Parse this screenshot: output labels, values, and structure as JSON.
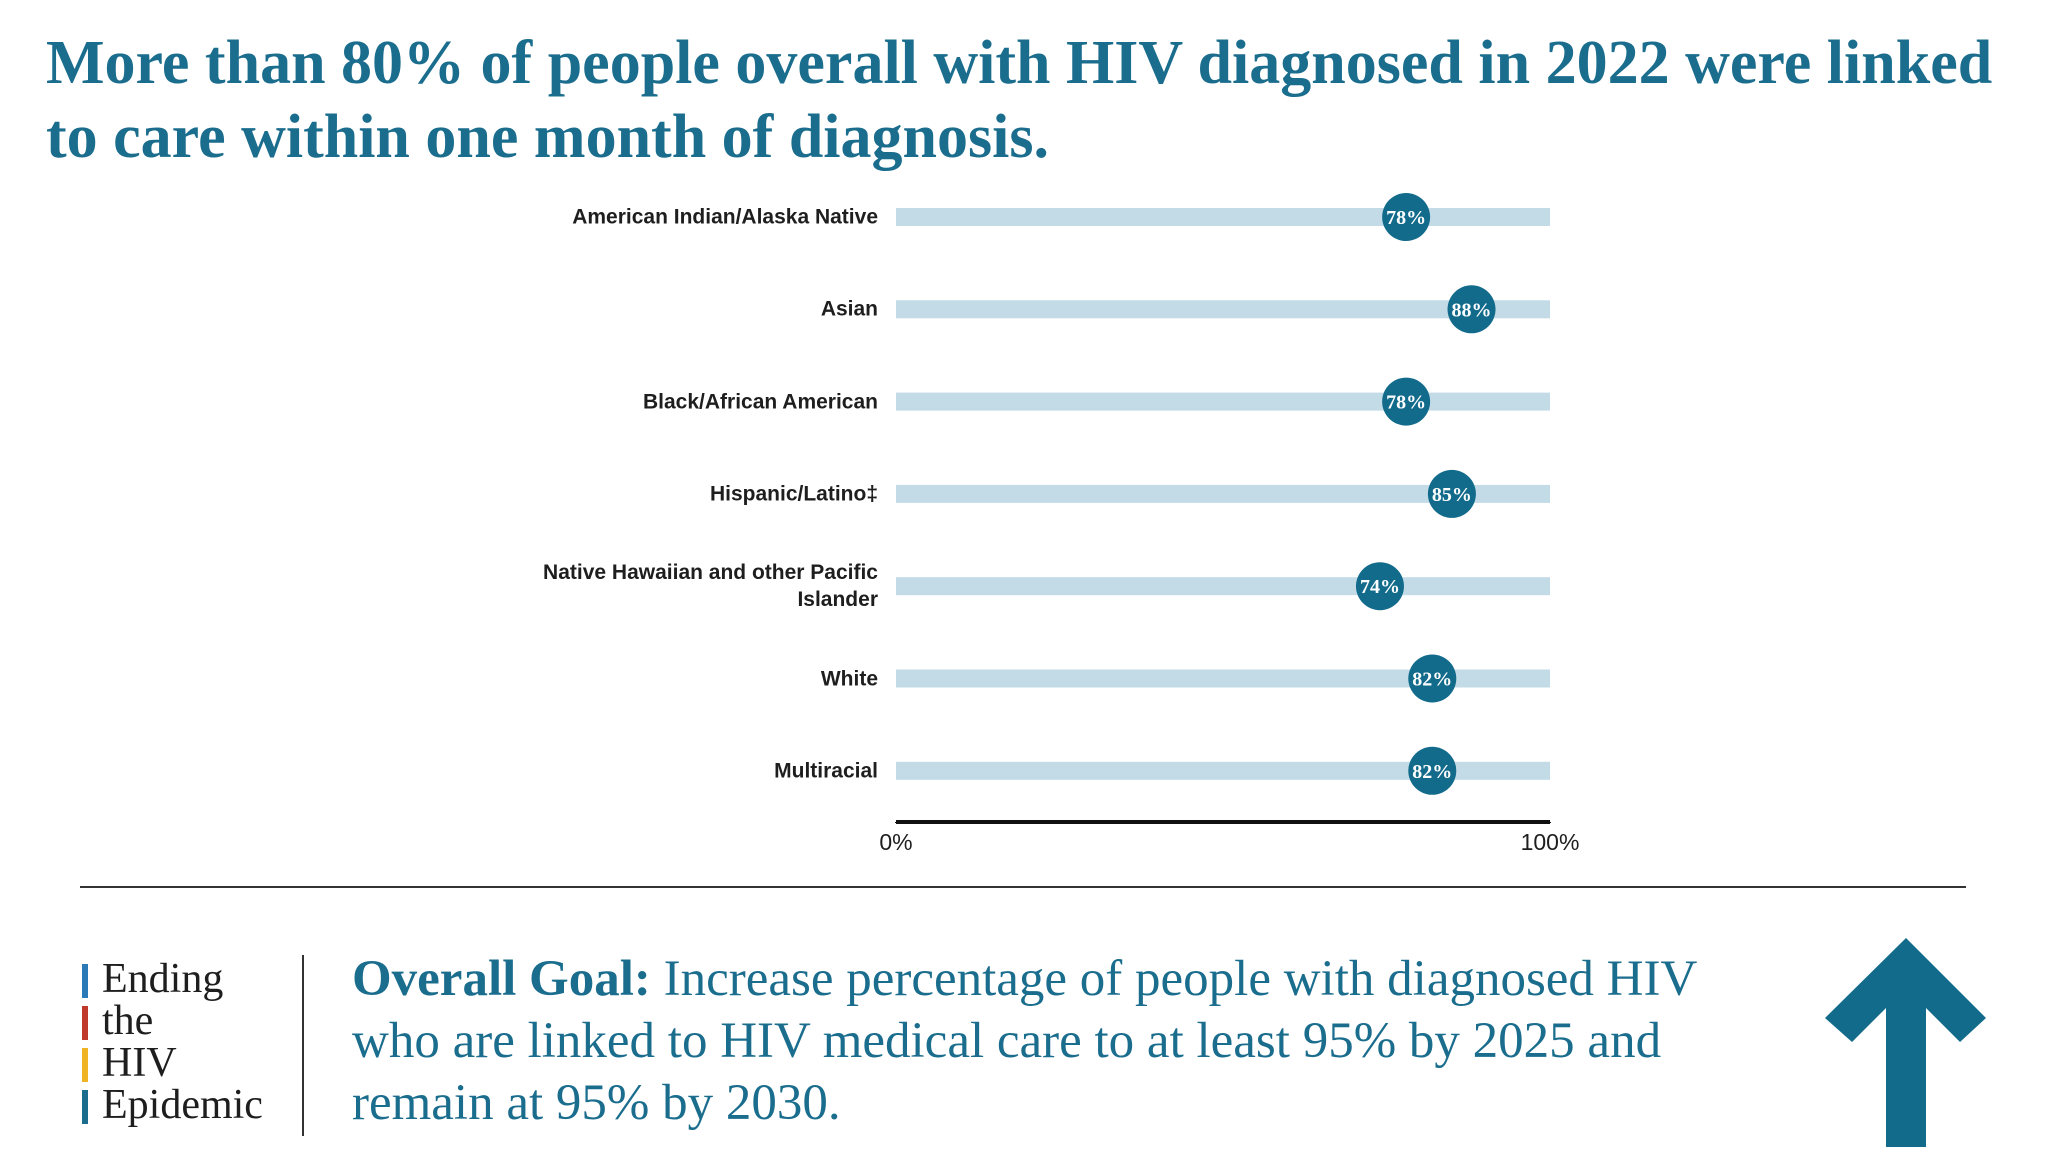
{
  "chart_data": {
    "type": "dot",
    "title": "More than 80% of people overall with HIV diagnosed in 2022 were linked to care within one month of diagnosis.",
    "categories": [
      "American Indian/Alaska Native",
      "Asian",
      "Black/African American",
      "Hispanic/Latino‡",
      "Native Hawaiian and other Pacific Islander",
      "White",
      "Multiracial"
    ],
    "values": [
      78,
      88,
      78,
      85,
      74,
      82,
      82
    ],
    "value_labels": [
      "78%",
      "88%",
      "78%",
      "85%",
      "74%",
      "82%",
      "82%"
    ],
    "color": "#136b8c",
    "track_color": "#c2dbe6",
    "xlim": [
      0,
      100
    ],
    "xticks": [
      {
        "value": 0,
        "label": "0%"
      },
      {
        "value": 100,
        "label": "100%"
      }
    ]
  },
  "logo": {
    "lines": [
      "Ending",
      "the",
      "HIV",
      "Epidemic"
    ]
  },
  "goal": {
    "label": "Overall Goal:",
    "text": "Increase percentage of people with diagnosed HIV who are linked to HIV medical care to at least 95% by 2025 and remain at 95% by 2030."
  }
}
